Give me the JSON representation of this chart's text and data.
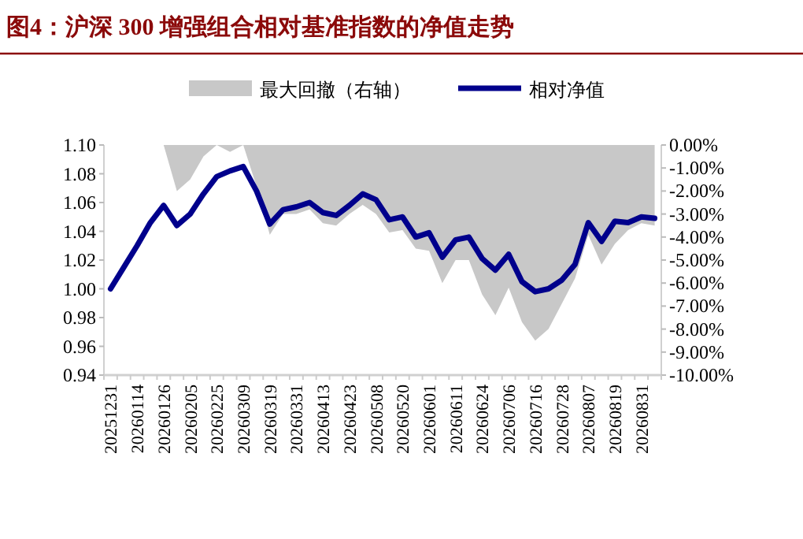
{
  "chart_data": {
    "type": "line",
    "title": "图4：沪深 300 增强组合相对基准指数的净值走势",
    "categories": [
      "20251231",
      null,
      "20260114",
      null,
      "20260126",
      null,
      "20260205",
      null,
      "20260225",
      null,
      "20260309",
      null,
      "20260319",
      null,
      "20260331",
      null,
      "20260413",
      null,
      "20260423",
      null,
      "20260508",
      null,
      "20260520",
      null,
      "20260601",
      null,
      "20260611",
      null,
      "20260624",
      null,
      "20260706",
      null,
      "20260716",
      null,
      "20260728",
      null,
      "20260807",
      null,
      "20260819",
      null,
      "20260831",
      null
    ],
    "series": [
      {
        "name": "最大回撤（右轴）",
        "type": "area",
        "axis": "y2",
        "color": "#c8c8c8",
        "values": [
          0,
          0,
          0,
          0,
          0,
          -2.0,
          -1.5,
          -0.5,
          0,
          -0.3,
          0,
          -1.8,
          -3.9,
          -3.0,
          -3.0,
          -2.8,
          -3.4,
          -3.5,
          -3.0,
          -2.6,
          -3.0,
          -3.8,
          -3.7,
          -4.5,
          -4.6,
          -6.0,
          -5.0,
          -5.0,
          -6.5,
          -7.4,
          -6.2,
          -7.7,
          -8.5,
          -8.0,
          -6.9,
          -5.8,
          -3.9,
          -5.2,
          -4.3,
          -3.7,
          -3.4,
          -3.5
        ]
      },
      {
        "name": "相对净值",
        "color": "#00008c",
        "values": [
          1.0,
          1.015,
          1.03,
          1.046,
          1.058,
          1.044,
          1.052,
          1.066,
          1.078,
          1.082,
          1.085,
          1.068,
          1.045,
          1.055,
          1.057,
          1.06,
          1.053,
          1.051,
          1.058,
          1.066,
          1.062,
          1.048,
          1.05,
          1.036,
          1.039,
          1.022,
          1.034,
          1.036,
          1.021,
          1.013,
          1.024,
          1.005,
          0.998,
          1.0,
          1.006,
          1.017,
          1.046,
          1.033,
          1.047,
          1.046,
          1.05,
          1.049
        ]
      }
    ],
    "ylim": [
      0.94,
      1.1
    ],
    "yticks": [
      {
        "value": 0.94,
        "label": "0.94"
      },
      {
        "value": 0.96,
        "label": "0.96"
      },
      {
        "value": 0.98,
        "label": "0.98"
      },
      {
        "value": 1.0,
        "label": "1.00"
      },
      {
        "value": 1.02,
        "label": "1.02"
      },
      {
        "value": 1.04,
        "label": "1.04"
      },
      {
        "value": 1.06,
        "label": "1.06"
      },
      {
        "value": 1.08,
        "label": "1.08"
      },
      {
        "value": 1.1,
        "label": "1.10"
      }
    ],
    "y2lim": [
      -10,
      0
    ],
    "y2ticks": [
      {
        "value": 0,
        "label": "0.00%"
      },
      {
        "value": -1,
        "label": "-1.00%"
      },
      {
        "value": -2,
        "label": "-2.00%"
      },
      {
        "value": -3,
        "label": "-3.00%"
      },
      {
        "value": -4,
        "label": "-4.00%"
      },
      {
        "value": -5,
        "label": "-5.00%"
      },
      {
        "value": -6,
        "label": "-6.00%"
      },
      {
        "value": -7,
        "label": "-7.00%"
      },
      {
        "value": -8,
        "label": "-8.00%"
      },
      {
        "value": -9,
        "label": "-9.00%"
      },
      {
        "value": -10,
        "label": "-10.00%"
      }
    ],
    "legend": "top",
    "grid": false
  }
}
